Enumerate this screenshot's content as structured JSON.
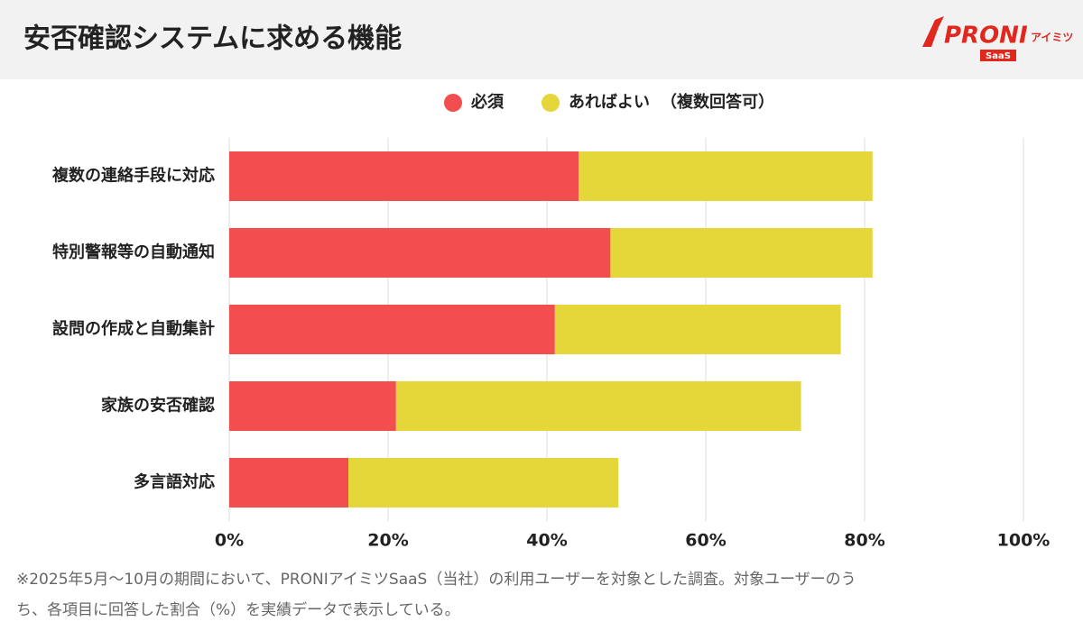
{
  "chart_data": {
    "type": "stacked-bar-horizontal",
    "title": "安否確認システムに求める機能",
    "categories": [
      "複数の連絡手段に対応",
      "特別警報等の自動通知",
      "設問の作成と自動集計",
      "家族の安否確認",
      "多言語対応"
    ],
    "series": [
      {
        "name": "必須",
        "color": "#f24e4e",
        "values": [
          44,
          48,
          41,
          21,
          15
        ]
      },
      {
        "name": "あればよい",
        "color": "#e5d63a",
        "values": [
          37,
          33,
          36,
          51,
          34
        ]
      }
    ],
    "legend_note": "（複数回答可）",
    "xlim": [
      0,
      100
    ],
    "xticks": [
      {
        "value": 0,
        "label": "0%"
      },
      {
        "value": 20,
        "label": "20%"
      },
      {
        "value": 40,
        "label": "40%"
      },
      {
        "value": 60,
        "label": "60%"
      },
      {
        "value": 80,
        "label": "80%"
      },
      {
        "value": 100,
        "label": "100%"
      }
    ],
    "grid": true,
    "footnote": [
      "※2025年5月〜10月の期間において、PRONIアイミツSaaS（当社）の利用ユーザーを対象とした調査。対象ユーザーのう",
      "ち、各項目に回答した割合（%）を実績データで表示している。"
    ]
  },
  "logo": {
    "brand": "PRONI",
    "kana": "アイミツ",
    "badge": "SaaS"
  }
}
